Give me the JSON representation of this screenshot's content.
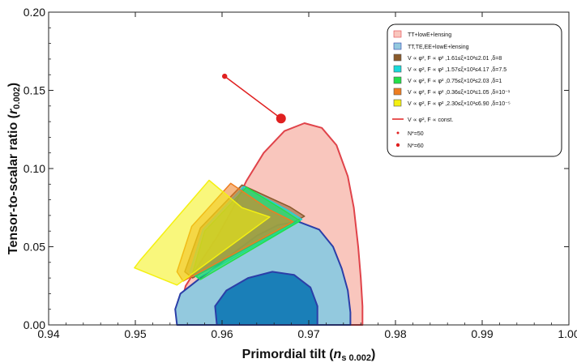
{
  "chart_data": {
    "type": "scatter",
    "xlabel": "Primordial tilt (n_{s 0.002})",
    "ylabel": "Tensor-to-scalar ratio (r_{0.002})",
    "xlim": [
      0.94,
      1.0
    ],
    "ylim": [
      0.0,
      0.2
    ],
    "x_ticks": [
      "0.94",
      "0.95",
      "0.96",
      "0.97",
      "0.98",
      "0.99",
      "1.00"
    ],
    "y_ticks": [
      "0.00",
      "0.05",
      "0.10",
      "0.15",
      "0.20"
    ],
    "grid": false,
    "legend_position": "top-right",
    "colors": {
      "tt_fill": "#f9c6bd",
      "tt_edge": "#e0434a",
      "ttte_fill": "#93c9de",
      "ttte_edge": "#2b3ea8",
      "core_fill": "#1a7fb8",
      "attractor_line": "#e02020"
    },
    "contours": [
      {
        "name": "TT+lowE+lensing",
        "color": "#f9c6bd",
        "edge": "#e0434a",
        "points": [
          [
            0.9555,
            0.0
          ],
          [
            0.9552,
            0.012
          ],
          [
            0.9558,
            0.025
          ],
          [
            0.9575,
            0.04
          ],
          [
            0.9595,
            0.057
          ],
          [
            0.9612,
            0.074
          ],
          [
            0.9628,
            0.092
          ],
          [
            0.9648,
            0.11
          ],
          [
            0.9672,
            0.124
          ],
          [
            0.9695,
            0.129
          ],
          [
            0.9715,
            0.126
          ],
          [
            0.9732,
            0.115
          ],
          [
            0.9745,
            0.095
          ],
          [
            0.9752,
            0.075
          ],
          [
            0.9757,
            0.05
          ],
          [
            0.976,
            0.03
          ],
          [
            0.9762,
            0.012
          ],
          [
            0.9762,
            0.0
          ]
        ]
      },
      {
        "name": "TT,TE,EE+lowE+lensing",
        "color": "#93c9de",
        "edge": "#2b3ea8",
        "points": [
          [
            0.9548,
            0.0
          ],
          [
            0.9546,
            0.01
          ],
          [
            0.9552,
            0.02
          ],
          [
            0.9575,
            0.03
          ],
          [
            0.9595,
            0.038
          ],
          [
            0.9618,
            0.048
          ],
          [
            0.964,
            0.057
          ],
          [
            0.9665,
            0.064
          ],
          [
            0.9688,
            0.066
          ],
          [
            0.9712,
            0.061
          ],
          [
            0.9728,
            0.05
          ],
          [
            0.9738,
            0.036
          ],
          [
            0.9745,
            0.022
          ],
          [
            0.9748,
            0.008
          ],
          [
            0.9748,
            0.0
          ]
        ]
      },
      {
        "name": "TT,TE,EE+lowE+lensing (68%)",
        "color": "#1a7fb8",
        "edge": "#2b3ea8",
        "points": [
          [
            0.9594,
            0.0
          ],
          [
            0.9592,
            0.012
          ],
          [
            0.9605,
            0.022
          ],
          [
            0.963,
            0.03
          ],
          [
            0.9658,
            0.034
          ],
          [
            0.9683,
            0.032
          ],
          [
            0.9702,
            0.024
          ],
          [
            0.971,
            0.012
          ],
          [
            0.971,
            0.0
          ]
        ]
      }
    ],
    "models": [
      {
        "label": "V ∝ φ², F ∝ φ² ,1.61≤ξ×10²≤2.01 ,δ=8",
        "color": "#8a5a2b",
        "points": [
          [
            0.9566,
            0.03
          ],
          [
            0.9695,
            0.0695
          ],
          [
            0.9678,
            0.0755
          ],
          [
            0.9623,
            0.0895
          ],
          [
            0.9575,
            0.062
          ],
          [
            0.9557,
            0.034
          ]
        ]
      },
      {
        "label": "V ∝ φ², F ∝ φ² ,1.57≤ξ×10²≤4.17 ,δ=7.5",
        "color": "#19d9d9",
        "points": [
          [
            0.9572,
            0.03
          ],
          [
            0.9692,
            0.0675
          ],
          [
            0.9675,
            0.0735
          ],
          [
            0.9625,
            0.0885
          ],
          [
            0.9578,
            0.061
          ],
          [
            0.9563,
            0.034
          ]
        ]
      },
      {
        "label": "V ∝ φ², F ∝ φ² ,0.75≤ξ×10²≤2.03 ,δ=1",
        "color": "#22e04a",
        "points": [
          [
            0.9575,
            0.029
          ],
          [
            0.969,
            0.0665
          ],
          [
            0.9672,
            0.073
          ],
          [
            0.9628,
            0.088
          ],
          [
            0.958,
            0.06
          ],
          [
            0.9566,
            0.033
          ]
        ]
      },
      {
        "label": "V ∝ φ², F ∝ φ² ,0.36≤ξ×10²≤1.05 ,δ=10⁻¹",
        "color": "#ee7d20",
        "points": [
          [
            0.9555,
            0.028
          ],
          [
            0.9682,
            0.066
          ],
          [
            0.9655,
            0.0735
          ],
          [
            0.961,
            0.0905
          ],
          [
            0.9565,
            0.063
          ],
          [
            0.9548,
            0.034
          ]
        ]
      },
      {
        "label": "V ∝ φ², F ∝ φ² ,2.30≤ξ×10³≤6.90 ,δ=10⁻⁵",
        "color": "#f4f011",
        "points": [
          [
            0.9499,
            0.0365
          ],
          [
            0.9548,
            0.0255
          ],
          [
            0.9655,
            0.069
          ],
          [
            0.9623,
            0.075
          ],
          [
            0.9585,
            0.0925
          ],
          [
            0.9505,
            0.041
          ]
        ]
      }
    ],
    "attractor": {
      "label": "V ∝ φ², F ∝ const.",
      "color": "#e02020",
      "line": [
        [
          0.9603,
          0.159
        ],
        [
          0.9668,
          0.132
        ]
      ],
      "points": [
        {
          "label": "N*=50",
          "x": 0.9603,
          "y": 0.159
        },
        {
          "label": "N*=60",
          "x": 0.9668,
          "y": 0.132
        }
      ]
    },
    "legend_entries": [
      "TT+lowE+lensing",
      "TT,TE,EE+lowE+lensing",
      "V ∝ φ², F ∝ φ² ,1.61≤ξ×10²≤2.01 ,δ=8",
      "V ∝ φ², F ∝ φ² ,1.57≤ξ×10²≤4.17 ,δ=7.5",
      "V ∝ φ², F ∝ φ² ,0.75≤ξ×10²≤2.03 ,δ=1",
      "V ∝ φ², F ∝ φ² ,0.36≤ξ×10²≤1.05 ,δ=10⁻¹",
      "V ∝ φ², F ∝ φ² ,2.30≤ξ×10³≤6.90 ,δ=10⁻⁵",
      "V ∝ φ², F ∝ const.",
      "N*=50",
      "N*=60"
    ]
  }
}
